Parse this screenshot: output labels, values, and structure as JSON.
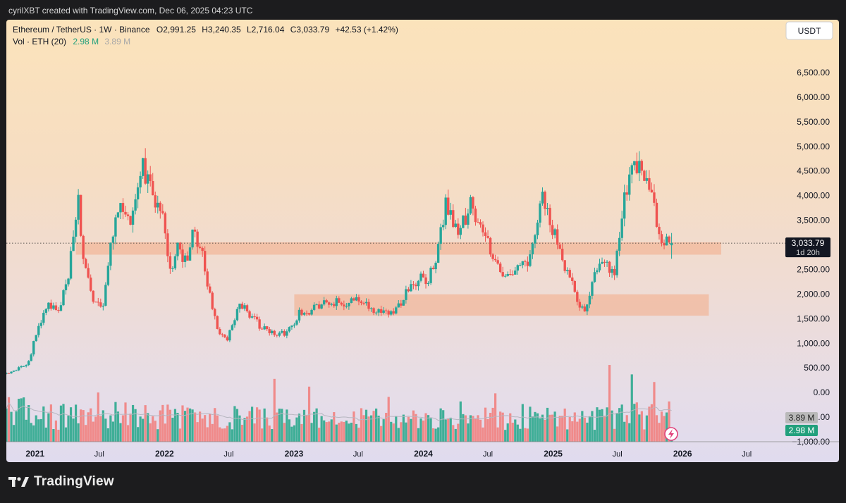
{
  "header": {
    "text": "cyrilXBT created with TradingView.com, Dec 06, 2025 04:23 UTC"
  },
  "footer": {
    "logo_text": "TradingView",
    "logo_icon": "tradingview-logo"
  },
  "legend": {
    "symbol_line": "Ethereum / TetherUS · 1W · Binance",
    "open": "O2,991.25",
    "high": "H3,240.35",
    "low": "L2,716.04",
    "close": "C3,033.79",
    "change": "+42.53 (+1.42%)",
    "vol_label": "Vol · ETH (20)",
    "vol_value": "2.98 M",
    "vol_ma": "3.89 M"
  },
  "currency_button": "USDT",
  "colors": {
    "up": "#26a69a",
    "down": "#ef5350",
    "up_vol": "#3fae97",
    "down_vol": "#f08a8a",
    "zone": "#f2b08f",
    "price_label_bg": "#131722",
    "vol_ma_label": "#b9b9b9",
    "vol_label": "#22a07c"
  },
  "chart_data": {
    "type": "candlestick",
    "title": "Ethereum / TetherUS · 1W · Binance",
    "interval": "1W",
    "ylim": [
      -1000,
      7000
    ],
    "y_ticks": [
      6500,
      6000,
      5500,
      5000,
      4500,
      4000,
      3500,
      3000,
      2500,
      2000,
      1500,
      1000,
      500,
      0,
      -500,
      -1000
    ],
    "y_tick_labels": [
      "6,500.00",
      "6,000.00",
      "5,500.00",
      "5,000.00",
      "4,500.00",
      "4,000.00",
      "3,500.00",
      "3,000.00",
      "2,500.00",
      "2,000.00",
      "1,500.00",
      "1,000.00",
      "500.00",
      "0.00",
      "−500.00",
      "−1,000.00"
    ],
    "x_range": [
      "2020-10-12",
      "2026-09-28"
    ],
    "x_ticks": [
      {
        "date": "2021-01-01",
        "label": "2021",
        "major": true
      },
      {
        "date": "2021-07-01",
        "label": "Jul",
        "major": false
      },
      {
        "date": "2022-01-01",
        "label": "2022",
        "major": true
      },
      {
        "date": "2022-07-01",
        "label": "Jul",
        "major": false
      },
      {
        "date": "2023-01-01",
        "label": "2023",
        "major": true
      },
      {
        "date": "2023-07-01",
        "label": "Jul",
        "major": false
      },
      {
        "date": "2024-01-01",
        "label": "2024",
        "major": true
      },
      {
        "date": "2024-07-01",
        "label": "Jul",
        "major": false
      },
      {
        "date": "2025-01-01",
        "label": "2025",
        "major": true
      },
      {
        "date": "2025-07-01",
        "label": "Jul",
        "major": false
      },
      {
        "date": "2026-01-01",
        "label": "2026",
        "major": true
      },
      {
        "date": "2026-07-01",
        "label": "Jul",
        "major": false
      }
    ],
    "price_anchors": [
      [
        "2020-10-12",
        380
      ],
      [
        "2020-11-16",
        460
      ],
      [
        "2020-12-21",
        610
      ],
      [
        "2021-01-11",
        1230
      ],
      [
        "2021-02-15",
        1800
      ],
      [
        "2021-03-15",
        1700
      ],
      [
        "2021-04-12",
        2400
      ],
      [
        "2021-05-10",
        3900
      ],
      [
        "2021-05-24",
        2700
      ],
      [
        "2021-06-21",
        1950
      ],
      [
        "2021-07-19",
        1800
      ],
      [
        "2021-08-09",
        3150
      ],
      [
        "2021-09-06",
        3800
      ],
      [
        "2021-10-04",
        3450
      ],
      [
        "2021-11-08",
        4650
      ],
      [
        "2021-12-06",
        4000
      ],
      [
        "2022-01-03",
        3700
      ],
      [
        "2022-01-24",
        2400
      ],
      [
        "2022-02-14",
        2900
      ],
      [
        "2022-03-14",
        2600
      ],
      [
        "2022-03-28",
        3400
      ],
      [
        "2022-04-25",
        2800
      ],
      [
        "2022-05-16",
        2000
      ],
      [
        "2022-06-13",
        1150
      ],
      [
        "2022-07-04",
        1100
      ],
      [
        "2022-08-08",
        1850
      ],
      [
        "2022-09-05",
        1600
      ],
      [
        "2022-10-03",
        1350
      ],
      [
        "2022-11-07",
        1200
      ],
      [
        "2022-12-19",
        1200
      ],
      [
        "2023-01-23",
        1600
      ],
      [
        "2023-02-20",
        1650
      ],
      [
        "2023-04-10",
        1900
      ],
      [
        "2023-05-22",
        1800
      ],
      [
        "2023-07-10",
        1900
      ],
      [
        "2023-08-21",
        1650
      ],
      [
        "2023-10-16",
        1600
      ],
      [
        "2023-11-20",
        2000
      ],
      [
        "2023-12-25",
        2300
      ],
      [
        "2024-01-22",
        2250
      ],
      [
        "2024-02-19",
        2900
      ],
      [
        "2024-03-11",
        3900
      ],
      [
        "2024-04-15",
        3150
      ],
      [
        "2024-05-20",
        3800
      ],
      [
        "2024-06-10",
        3500
      ],
      [
        "2024-07-08",
        3050
      ],
      [
        "2024-08-05",
        2550
      ],
      [
        "2024-09-02",
        2400
      ],
      [
        "2024-10-07",
        2500
      ],
      [
        "2024-11-04",
        2700
      ],
      [
        "2024-12-09",
        3900
      ],
      [
        "2025-01-06",
        3300
      ],
      [
        "2025-02-03",
        2750
      ],
      [
        "2025-03-10",
        2000
      ],
      [
        "2025-04-07",
        1600
      ],
      [
        "2025-05-12",
        2500
      ],
      [
        "2025-06-09",
        2550
      ],
      [
        "2025-06-30",
        2400
      ],
      [
        "2025-07-21",
        3700
      ],
      [
        "2025-08-18",
        4600
      ],
      [
        "2025-09-15",
        4500
      ],
      [
        "2025-10-13",
        4000
      ],
      [
        "2025-11-10",
        3100
      ],
      [
        "2025-12-01",
        3033.79
      ]
    ],
    "weekly_candles": "one candle per week from 2020-10-12 to 2025-12-01 following the price_anchors path",
    "last_candle": {
      "open": 2991.25,
      "high": 3240.35,
      "low": 2716.04,
      "close": 3033.79
    },
    "current_price": 3033.79,
    "current_price_label": "3,033.79",
    "countdown_label": "1d 20h",
    "zones": [
      {
        "x": [
          "2021-04-26",
          "2026-04-20"
        ],
        "y": [
          2800,
          3050
        ]
      },
      {
        "x": [
          "2023-01-02",
          "2026-03-16"
        ],
        "y": [
          1560,
          1995
        ]
      }
    ],
    "volume": {
      "label": "Vol · ETH (20)",
      "last": "2.98 M",
      "ma": "3.89 M",
      "last_label": "2.98 M",
      "ma_label": "3.89 M"
    }
  }
}
